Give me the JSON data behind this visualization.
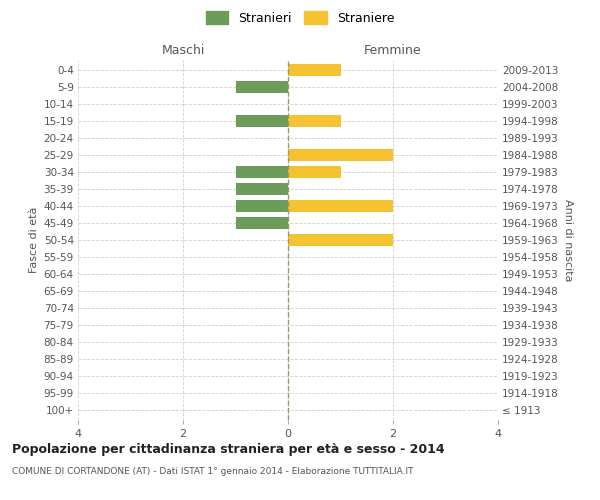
{
  "age_groups": [
    "100+",
    "95-99",
    "90-94",
    "85-89",
    "80-84",
    "75-79",
    "70-74",
    "65-69",
    "60-64",
    "55-59",
    "50-54",
    "45-49",
    "40-44",
    "35-39",
    "30-34",
    "25-29",
    "20-24",
    "15-19",
    "10-14",
    "5-9",
    "0-4"
  ],
  "birth_years": [
    "≤ 1913",
    "1914-1918",
    "1919-1923",
    "1924-1928",
    "1929-1933",
    "1934-1938",
    "1939-1943",
    "1944-1948",
    "1949-1953",
    "1954-1958",
    "1959-1963",
    "1964-1968",
    "1969-1973",
    "1974-1978",
    "1979-1983",
    "1984-1988",
    "1989-1993",
    "1994-1998",
    "1999-2003",
    "2004-2008",
    "2009-2013"
  ],
  "maschi": [
    0,
    0,
    0,
    0,
    0,
    0,
    0,
    0,
    0,
    0,
    0,
    1,
    1,
    1,
    1,
    0,
    0,
    1,
    0,
    1,
    0
  ],
  "femmine": [
    0,
    0,
    0,
    0,
    0,
    0,
    0,
    0,
    0,
    0,
    2,
    0,
    2,
    0,
    1,
    2,
    0,
    1,
    0,
    0,
    1
  ],
  "maschi_color": "#6d9b5a",
  "femmine_color": "#f5c232",
  "background_color": "#ffffff",
  "grid_color": "#d0d0d0",
  "title": "Popolazione per cittadinanza straniera per età e sesso - 2014",
  "subtitle": "COMUNE DI CORTANDONE (AT) - Dati ISTAT 1° gennaio 2014 - Elaborazione TUTTITALIA.IT",
  "ylabel_left": "Fasce di età",
  "ylabel_right": "Anni di nascita",
  "label_maschi": "Maschi",
  "label_femmine": "Femmine",
  "legend_stranieri": "Stranieri",
  "legend_straniere": "Straniere",
  "xlim": [
    -4,
    4
  ],
  "bar_height": 0.7
}
